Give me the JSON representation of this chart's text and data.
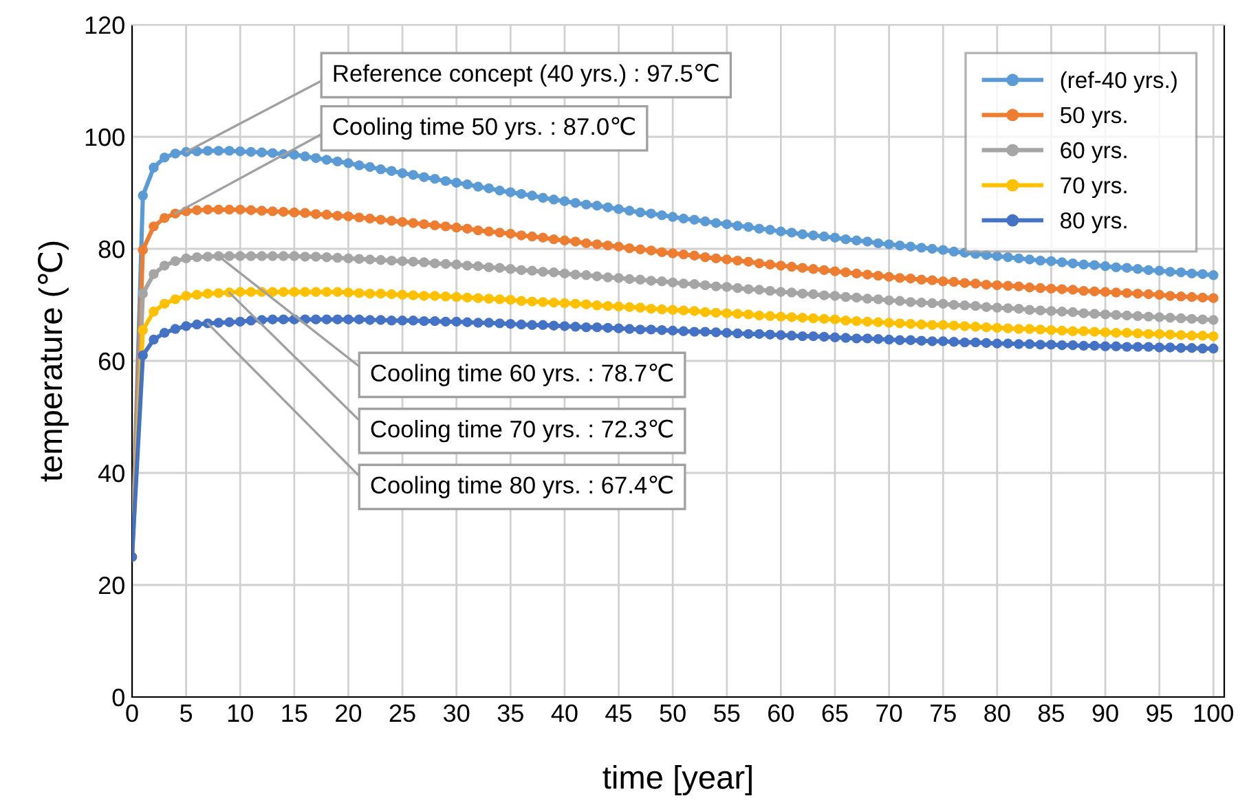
{
  "chart_data": {
    "type": "line",
    "xlabel": "time [year]",
    "ylabel": "temperature (℃)",
    "x": [
      0,
      1,
      2,
      3,
      4,
      5,
      6,
      7,
      8,
      9,
      10,
      11,
      12,
      13,
      14,
      15,
      16,
      17,
      18,
      19,
      20,
      21,
      22,
      23,
      24,
      25,
      26,
      27,
      28,
      29,
      30,
      31,
      32,
      33,
      34,
      35,
      36,
      37,
      38,
      39,
      40,
      41,
      42,
      43,
      44,
      45,
      46,
      47,
      48,
      49,
      50,
      51,
      52,
      53,
      54,
      55,
      56,
      57,
      58,
      59,
      60,
      61,
      62,
      63,
      64,
      65,
      66,
      67,
      68,
      69,
      70,
      71,
      72,
      73,
      74,
      75,
      76,
      77,
      78,
      79,
      80,
      81,
      82,
      83,
      84,
      85,
      86,
      87,
      88,
      89,
      90,
      91,
      92,
      93,
      94,
      95,
      96,
      97,
      98,
      99,
      100
    ],
    "series": [
      {
        "name": "(ref-40 yrs.)",
        "color": "#5b9bd5",
        "values": [
          25,
          89.5,
          94.5,
          96.3,
          97,
          97.3,
          97.4,
          97.5,
          97.5,
          97.5,
          97.4,
          97.3,
          97.2,
          97.1,
          96.9,
          96.8,
          96.5,
          96.2,
          95.9,
          95.6,
          95.3,
          94.9,
          94.6,
          94.2,
          93.9,
          93.5,
          93.2,
          92.8,
          92.5,
          92.1,
          91.8,
          91.5,
          91.1,
          90.8,
          90.4,
          90.1,
          89.8,
          89.5,
          89.1,
          88.8,
          88.5,
          88.2,
          87.9,
          87.7,
          87.4,
          87.1,
          86.8,
          86.5,
          86.3,
          86.0,
          85.7,
          85.4,
          85.2,
          84.9,
          84.6,
          84.4,
          84.1,
          83.9,
          83.6,
          83.4,
          83.1,
          82.9,
          82.6,
          82.4,
          82.2,
          82.0,
          81.7,
          81.5,
          81.3,
          81.0,
          80.8,
          80.6,
          80.4,
          80.2,
          80.0,
          79.8,
          79.5,
          79.3,
          79.1,
          78.9,
          78.7,
          78.5,
          78.3,
          78.1,
          77.9,
          77.8,
          77.6,
          77.4,
          77.2,
          77.1,
          76.9,
          76.7,
          76.6,
          76.4,
          76.2,
          76.1,
          75.9,
          75.8,
          75.6,
          75.5,
          75.3
        ]
      },
      {
        "name": "50 yrs.",
        "color": "#ed7d31",
        "values": [
          25,
          79.8,
          84,
          85.5,
          86.3,
          86.7,
          86.9,
          87.0,
          87.0,
          87.0,
          87.0,
          86.9,
          86.8,
          86.7,
          86.6,
          86.5,
          86.4,
          86.2,
          86.1,
          85.9,
          85.8,
          85.6,
          85.4,
          85.2,
          85.0,
          84.8,
          84.6,
          84.4,
          84.2,
          84.0,
          83.8,
          83.6,
          83.3,
          83.1,
          82.9,
          82.7,
          82.4,
          82.2,
          82.0,
          81.7,
          81.5,
          81.3,
          81.0,
          80.8,
          80.6,
          80.4,
          80.1,
          79.9,
          79.7,
          79.4,
          79.2,
          79.0,
          78.8,
          78.5,
          78.3,
          78.1,
          77.9,
          77.7,
          77.4,
          77.2,
          77.0,
          76.8,
          76.6,
          76.4,
          76.2,
          76.0,
          75.8,
          75.6,
          75.4,
          75.2,
          75.0,
          74.8,
          74.7,
          74.5,
          74.4,
          74.2,
          74.1,
          73.9,
          73.8,
          73.6,
          73.5,
          73.4,
          73.3,
          73.1,
          73.0,
          72.9,
          72.8,
          72.7,
          72.5,
          72.4,
          72.3,
          72.2,
          72.1,
          72.0,
          71.9,
          71.8,
          71.6,
          71.5,
          71.4,
          71.3,
          71.2
        ]
      },
      {
        "name": "60 yrs.",
        "color": "#a5a5a5",
        "values": [
          25,
          72,
          75.5,
          77,
          77.8,
          78.3,
          78.5,
          78.6,
          78.7,
          78.7,
          78.7,
          78.7,
          78.7,
          78.7,
          78.7,
          78.7,
          78.6,
          78.6,
          78.5,
          78.4,
          78.3,
          78.2,
          78.1,
          78.0,
          77.9,
          77.8,
          77.7,
          77.6,
          77.4,
          77.3,
          77.2,
          77.0,
          76.9,
          76.7,
          76.6,
          76.4,
          76.2,
          76.1,
          75.9,
          75.8,
          75.6,
          75.4,
          75.3,
          75.1,
          74.9,
          74.8,
          74.6,
          74.5,
          74.3,
          74.2,
          74.0,
          73.8,
          73.7,
          73.5,
          73.3,
          73.2,
          73.0,
          72.8,
          72.7,
          72.5,
          72.3,
          72.2,
          72.0,
          71.9,
          71.7,
          71.6,
          71.4,
          71.3,
          71.1,
          71.0,
          70.8,
          70.7,
          70.5,
          70.4,
          70.3,
          70.2,
          70.0,
          69.9,
          69.8,
          69.6,
          69.5,
          69.4,
          69.3,
          69.1,
          69.0,
          68.9,
          68.8,
          68.7,
          68.5,
          68.4,
          68.3,
          68.2,
          68.1,
          68.0,
          67.9,
          67.8,
          67.7,
          67.6,
          67.5,
          67.4,
          67.3
        ]
      },
      {
        "name": "70 yrs.",
        "color": "#ffc000",
        "values": [
          25,
          65.5,
          68.8,
          70.2,
          71,
          71.6,
          71.8,
          72.0,
          72.1,
          72.2,
          72.3,
          72.3,
          72.3,
          72.3,
          72.3,
          72.3,
          72.3,
          72.3,
          72.3,
          72.3,
          72.2,
          72.1,
          72.0,
          72.0,
          71.9,
          71.8,
          71.7,
          71.6,
          71.6,
          71.5,
          71.4,
          71.3,
          71.2,
          71.1,
          71.0,
          70.9,
          70.7,
          70.6,
          70.5,
          70.4,
          70.3,
          70.2,
          70.1,
          69.9,
          69.8,
          69.7,
          69.6,
          69.5,
          69.3,
          69.2,
          69.1,
          69.0,
          68.9,
          68.7,
          68.6,
          68.5,
          68.4,
          68.3,
          68.1,
          68.0,
          67.9,
          67.8,
          67.7,
          67.6,
          67.5,
          67.4,
          67.2,
          67.1,
          67.0,
          66.9,
          66.8,
          66.7,
          66.6,
          66.5,
          66.4,
          66.4,
          66.3,
          66.2,
          66.1,
          66.0,
          65.9,
          65.8,
          65.7,
          65.7,
          65.6,
          65.5,
          65.4,
          65.3,
          65.3,
          65.2,
          65.1,
          65.0,
          65.0,
          64.9,
          64.8,
          64.8,
          64.7,
          64.6,
          64.5,
          64.5,
          64.4
        ]
      },
      {
        "name": "80 yrs.",
        "color": "#4472c4",
        "values": [
          25,
          61,
          63.8,
          65,
          65.7,
          66.2,
          66.5,
          66.7,
          66.8,
          66.9,
          67.0,
          67.2,
          67.3,
          67.4,
          67.4,
          67.4,
          67.4,
          67.4,
          67.4,
          67.4,
          67.4,
          67.4,
          67.3,
          67.3,
          67.2,
          67.2,
          67.2,
          67.1,
          67.1,
          67.0,
          67.0,
          66.9,
          66.8,
          66.8,
          66.7,
          66.6,
          66.5,
          66.4,
          66.4,
          66.3,
          66.2,
          66.1,
          66.0,
          66.0,
          65.9,
          65.8,
          65.7,
          65.6,
          65.6,
          65.5,
          65.4,
          65.3,
          65.2,
          65.2,
          65.1,
          65.0,
          64.9,
          64.8,
          64.8,
          64.7,
          64.6,
          64.5,
          64.4,
          64.4,
          64.3,
          64.2,
          64.1,
          64.0,
          64.0,
          63.9,
          63.8,
          63.7,
          63.7,
          63.6,
          63.5,
          63.5,
          63.4,
          63.3,
          63.3,
          63.2,
          63.1,
          63.1,
          63.0,
          63.0,
          62.9,
          62.9,
          62.8,
          62.8,
          62.7,
          62.7,
          62.6,
          62.6,
          62.5,
          62.5,
          62.5,
          62.4,
          62.4,
          62.3,
          62.3,
          62.2,
          62.2
        ]
      }
    ],
    "annotations": [
      {
        "text": "Reference concept (40 yrs.) : 97.5℃",
        "x": 5,
        "y": 97.3
      },
      {
        "text": "Cooling time 50 yrs. : 87.0℃",
        "x": 4,
        "y": 86.3
      },
      {
        "text": "Cooling time 60 yrs. : 78.7℃",
        "x": 8,
        "y": 78.7
      },
      {
        "text": "Cooling time 70 yrs. : 72.3℃",
        "x": 9,
        "y": 72.2
      },
      {
        "text": "Cooling time 80 yrs. : 67.4℃",
        "x": 7,
        "y": 66.7
      }
    ],
    "xlim": [
      0,
      101
    ],
    "ylim": [
      0,
      120
    ],
    "xticks": [
      0,
      5,
      10,
      15,
      20,
      25,
      30,
      35,
      40,
      45,
      50,
      55,
      60,
      65,
      70,
      75,
      80,
      85,
      90,
      95,
      100
    ],
    "yticks": [
      0,
      20,
      40,
      60,
      80,
      100,
      120
    ],
    "grid": true,
    "legend": "top right",
    "marker": "circle",
    "line_style": "solid"
  }
}
